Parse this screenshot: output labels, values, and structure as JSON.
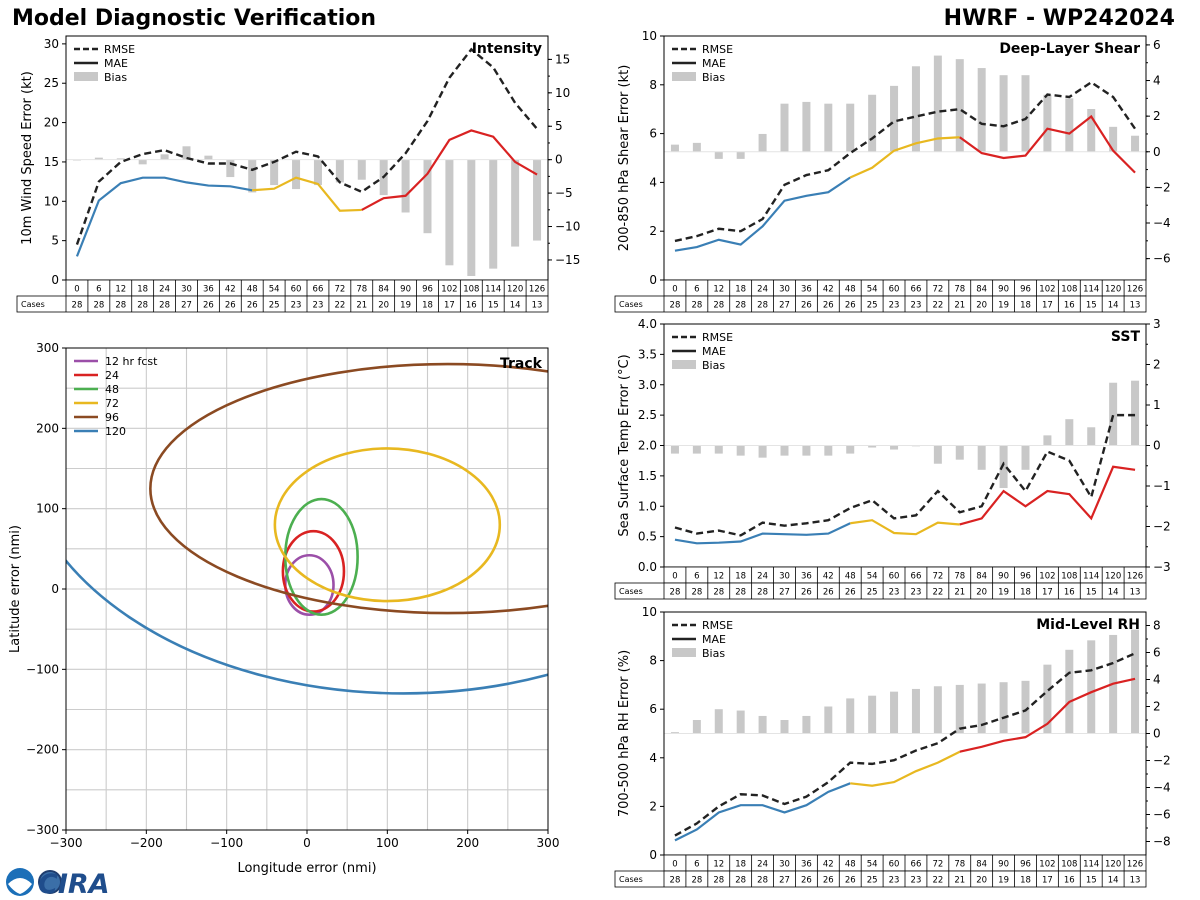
{
  "header": {
    "left_title": "Model Diagnostic Verification",
    "right_title": "HWRF - WP242024"
  },
  "logo": {
    "text": "CIRA"
  },
  "colors": {
    "rmse": "#222222",
    "early": "#3a7fb5",
    "mid": "#e8b820",
    "late": "#d92222",
    "bias": "#c8c8c8",
    "grid": "#cccccc"
  },
  "cases_label": "Cases",
  "chart_data": [
    {
      "id": "intensity",
      "type": "line",
      "title": "Intensity",
      "ylabel": "10m Wind Speed Error (kt)",
      "ylim": [
        0,
        31
      ],
      "yticks": [
        0,
        5,
        10,
        15,
        20,
        25,
        30
      ],
      "y2lim": [
        -18,
        18.5
      ],
      "y2ticks": [
        -15,
        -10,
        -5,
        0,
        5,
        10,
        15
      ],
      "legend": [
        "RMSE",
        "MAE",
        "Bias"
      ],
      "x": [
        0,
        6,
        12,
        18,
        24,
        30,
        36,
        42,
        48,
        54,
        60,
        66,
        72,
        78,
        84,
        90,
        96,
        102,
        108,
        114,
        120,
        126
      ],
      "rmse": [
        4.5,
        12.5,
        15.0,
        16.0,
        16.5,
        15.5,
        14.8,
        14.8,
        14.0,
        15.0,
        16.3,
        15.7,
        12.4,
        11.2,
        13.1,
        16.1,
        20.2,
        25.7,
        29.3,
        27.0,
        22.5,
        19.2
      ],
      "mae": [
        3.0,
        10.1,
        12.3,
        13.0,
        13.0,
        12.4,
        12.0,
        11.9,
        11.4,
        11.6,
        13.0,
        12.2,
        8.8,
        8.9,
        10.4,
        10.7,
        13.5,
        17.8,
        19.0,
        18.2,
        15.0,
        13.4
      ],
      "bias": [
        -0.1,
        0.3,
        0.2,
        -0.7,
        0.8,
        2.0,
        0.6,
        -2.6,
        -4.9,
        -3.8,
        -4.4,
        -3.8,
        -3.4,
        -3.0,
        -5.3,
        -7.9,
        -11.0,
        -15.8,
        -17.4,
        -16.3,
        -13.0,
        -12.1
      ],
      "cases": [
        28,
        28,
        28,
        28,
        28,
        27,
        26,
        26,
        26,
        25,
        23,
        23,
        22,
        21,
        20,
        19,
        18,
        17,
        16,
        15,
        14,
        13
      ]
    },
    {
      "id": "shear",
      "type": "line",
      "title": "Deep-Layer Shear",
      "ylabel": "200-850 hPa Shear Error (kt)",
      "ylim": [
        0,
        10
      ],
      "yticks": [
        0,
        2,
        4,
        6,
        8,
        10
      ],
      "y2lim": [
        -7.2,
        6.5
      ],
      "y2ticks": [
        -6,
        -4,
        -2,
        0,
        2,
        4,
        6
      ],
      "legend": [
        "RMSE",
        "MAE",
        "Bias"
      ],
      "x": [
        0,
        6,
        12,
        18,
        24,
        30,
        36,
        42,
        48,
        54,
        60,
        66,
        72,
        78,
        84,
        90,
        96,
        102,
        108,
        114,
        120,
        126
      ],
      "rmse": [
        1.6,
        1.8,
        2.1,
        2.0,
        2.5,
        3.9,
        4.3,
        4.5,
        5.2,
        5.8,
        6.5,
        6.7,
        6.9,
        7.0,
        6.4,
        6.3,
        6.6,
        7.6,
        7.5,
        8.1,
        7.5,
        6.2
      ],
      "mae": [
        1.2,
        1.35,
        1.65,
        1.45,
        2.2,
        3.25,
        3.45,
        3.6,
        4.2,
        4.6,
        5.3,
        5.6,
        5.8,
        5.85,
        5.2,
        5.0,
        5.1,
        6.2,
        6.0,
        6.7,
        5.3,
        4.4
      ],
      "bias": [
        0.4,
        0.5,
        -0.4,
        -0.4,
        1.0,
        2.7,
        2.8,
        2.7,
        2.7,
        3.2,
        3.7,
        4.8,
        5.4,
        5.2,
        4.7,
        4.3,
        4.3,
        3.2,
        3.0,
        2.4,
        1.4,
        0.9
      ],
      "cases": [
        28,
        28,
        28,
        28,
        28,
        27,
        26,
        26,
        26,
        25,
        23,
        23,
        22,
        21,
        20,
        19,
        18,
        17,
        16,
        15,
        14,
        13
      ]
    },
    {
      "id": "sst",
      "type": "line",
      "title": "SST",
      "ylabel": "Sea Surface Temp Error (°C)",
      "ylim": [
        0,
        4.0
      ],
      "yticks": [
        0.0,
        0.5,
        1.0,
        1.5,
        2.0,
        2.5,
        3.0,
        3.5,
        4.0
      ],
      "y2lim": [
        -3,
        3
      ],
      "y2ticks": [
        -3,
        -2,
        -1,
        0,
        1,
        2,
        3
      ],
      "legend": [
        "RMSE",
        "MAE",
        "Bias"
      ],
      "x": [
        0,
        6,
        12,
        18,
        24,
        30,
        36,
        42,
        48,
        54,
        60,
        66,
        72,
        78,
        84,
        90,
        96,
        102,
        108,
        114,
        120,
        126
      ],
      "rmse": [
        0.65,
        0.55,
        0.6,
        0.52,
        0.73,
        0.68,
        0.72,
        0.77,
        0.97,
        1.1,
        0.8,
        0.85,
        1.25,
        0.9,
        1.0,
        1.7,
        1.25,
        1.9,
        1.75,
        1.15,
        2.5,
        2.5
      ],
      "mae": [
        0.45,
        0.39,
        0.4,
        0.42,
        0.55,
        0.54,
        0.53,
        0.55,
        0.72,
        0.77,
        0.56,
        0.54,
        0.73,
        0.7,
        0.8,
        1.25,
        1.0,
        1.25,
        1.2,
        0.8,
        1.65,
        1.6
      ],
      "bias": [
        -0.2,
        -0.2,
        -0.2,
        -0.25,
        -0.3,
        -0.25,
        -0.25,
        -0.25,
        -0.2,
        -0.05,
        -0.1,
        0.0,
        -0.45,
        -0.35,
        -0.6,
        -1.05,
        -0.6,
        0.25,
        0.65,
        0.45,
        1.55,
        1.6
      ],
      "cases": [
        28,
        28,
        28,
        28,
        28,
        27,
        26,
        26,
        26,
        25,
        23,
        23,
        22,
        21,
        20,
        19,
        18,
        17,
        16,
        15,
        14,
        13
      ]
    },
    {
      "id": "rh",
      "type": "line",
      "title": "Mid-Level RH",
      "ylabel": "700-500 hPa RH Error (%)",
      "ylim": [
        0,
        10
      ],
      "yticks": [
        0,
        2,
        4,
        6,
        8,
        10
      ],
      "y2lim": [
        -9,
        9
      ],
      "y2ticks": [
        -8,
        -6,
        -4,
        -2,
        0,
        2,
        4,
        6,
        8
      ],
      "legend": [
        "RMSE",
        "MAE",
        "Bias"
      ],
      "x": [
        0,
        6,
        12,
        18,
        24,
        30,
        36,
        42,
        48,
        54,
        60,
        66,
        72,
        78,
        84,
        90,
        96,
        102,
        108,
        114,
        120,
        126
      ],
      "rmse": [
        0.8,
        1.3,
        2.0,
        2.5,
        2.45,
        2.1,
        2.4,
        3.0,
        3.8,
        3.75,
        3.9,
        4.3,
        4.6,
        5.2,
        5.35,
        5.65,
        5.95,
        6.75,
        7.5,
        7.6,
        7.9,
        8.3
      ],
      "mae": [
        0.6,
        1.05,
        1.75,
        2.05,
        2.05,
        1.75,
        2.05,
        2.6,
        2.95,
        2.85,
        3.0,
        3.45,
        3.8,
        4.25,
        4.45,
        4.7,
        4.85,
        5.4,
        6.3,
        6.7,
        7.05,
        7.25
      ],
      "bias": [
        0.1,
        1.0,
        1.8,
        1.7,
        1.3,
        1.0,
        1.3,
        2.0,
        2.6,
        2.8,
        3.1,
        3.3,
        3.5,
        3.6,
        3.7,
        3.8,
        3.9,
        5.1,
        6.2,
        6.9,
        7.3,
        7.7
      ],
      "cases": [
        28,
        28,
        28,
        28,
        28,
        27,
        26,
        26,
        26,
        25,
        23,
        23,
        22,
        21,
        20,
        19,
        18,
        17,
        16,
        15,
        14,
        13
      ]
    },
    {
      "id": "track",
      "type": "ellipse",
      "title": "Track",
      "xlabel": "Longitude error (nmi)",
      "ylabel": "Latitude error (nmi)",
      "xlim": [
        -300,
        300
      ],
      "ylim": [
        -300,
        300
      ],
      "xticks": [
        -300,
        -200,
        -100,
        0,
        100,
        200,
        300
      ],
      "yticks": [
        -300,
        -200,
        -100,
        0,
        100,
        200,
        300
      ],
      "series": [
        {
          "name": "12 hr fcst",
          "color": "#9b4fa8",
          "cx": 3,
          "cy": 5,
          "rx": 30,
          "ry": 37
        },
        {
          "name": "24",
          "color": "#d92222",
          "cx": 8,
          "cy": 22,
          "rx": 38,
          "ry": 50
        },
        {
          "name": "48",
          "color": "#4caf50",
          "cx": 18,
          "cy": 40,
          "rx": 45,
          "ry": 72
        },
        {
          "name": "72",
          "color": "#e8b820",
          "cx": 100,
          "cy": 80,
          "rx": 140,
          "ry": 95
        },
        {
          "name": "96",
          "color": "#8b4a22",
          "cx": 175,
          "cy": 125,
          "rx": 370,
          "ry": 155
        },
        {
          "name": "120",
          "color": "#3a7fb5",
          "cx": 120,
          "cy": 190,
          "rx": 480,
          "ry": 320
        }
      ]
    }
  ]
}
